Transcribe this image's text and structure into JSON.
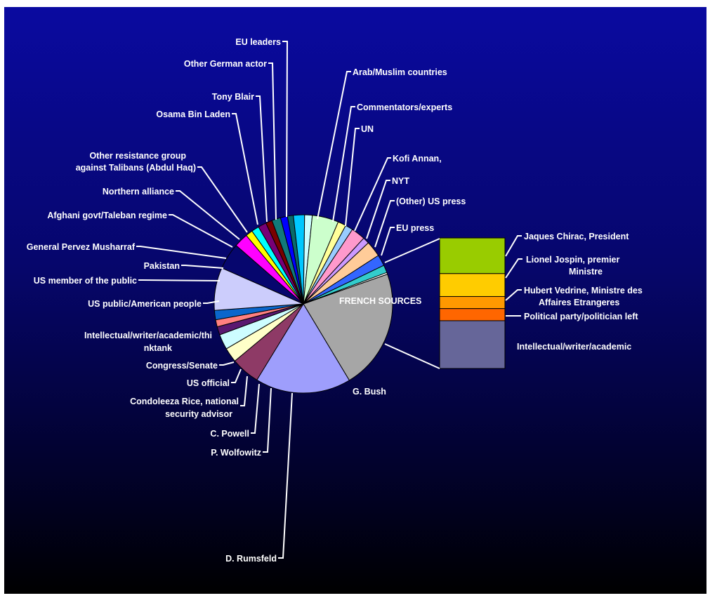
{
  "chart_data": {
    "type": "pie",
    "subtype": "bar-of-pie",
    "legend": "none (leader-line labels)",
    "slices": [
      {
        "label": "FRENCH SOURCES",
        "value": 20.5,
        "color": "#a6a6a6"
      },
      {
        "label": "G. Bush",
        "value": 16.3,
        "color": "#9e9efc"
      },
      {
        "label": "D. Rumsfeld",
        "value": 4.9,
        "color": "#8e3a66"
      },
      {
        "label": "P. Wolfowitz",
        "value": 2.5,
        "color": "#ffffc8"
      },
      {
        "label": "C. Powell",
        "value": 2.6,
        "color": "#cdfdff"
      },
      {
        "label": "Condoleeza Rice, national security advisor",
        "value": 1.4,
        "color": "#5a1870"
      },
      {
        "label": "US official",
        "value": 1.2,
        "color": "#ff8080"
      },
      {
        "label": "Congress/Senate",
        "value": 1.6,
        "color": "#0a66cc"
      },
      {
        "label": "Intellectual/writer/academic/thinktank",
        "value": 7.3,
        "color": "#cccdfc"
      },
      {
        "label": "US public/American people",
        "value": 4.5,
        "color": "#06066e"
      },
      {
        "label": "US member of the public",
        "value": 2.4,
        "color": "#ff00ff"
      },
      {
        "label": "Pakistan",
        "value": 1.2,
        "color": "#ffff00"
      },
      {
        "label": "General Pervez Musharraf",
        "value": 1.3,
        "color": "#00ffff"
      },
      {
        "label": "Afghani govt/Taleban regime",
        "value": 1.4,
        "color": "#770077"
      },
      {
        "label": "Northern alliance",
        "value": 1.1,
        "color": "#7a0000"
      },
      {
        "label": "Other resistance group against Talibans (Abdul Haq)",
        "value": 1.5,
        "color": "#117a7a"
      },
      {
        "label": "Osama Bin Laden",
        "value": 1.2,
        "color": "#0000ff"
      },
      {
        "label": "Tony Blair",
        "value": 1.0,
        "color": "#0a6a6a"
      },
      {
        "label": "Other German actor",
        "value": 1.9,
        "color": "#00c8ff"
      },
      {
        "label": "EU leaders",
        "value": 1.3,
        "color": "#ccffff"
      },
      {
        "label": "(unlabeled)",
        "value": 4.5,
        "color": "#ccffcc"
      },
      {
        "label": "Arab/Muslim countries",
        "value": 1.4,
        "color": "#ffff99"
      },
      {
        "label": "(unlabeled)",
        "value": 1.3,
        "color": "#99ccff"
      },
      {
        "label": "Commentators/experts",
        "value": 2.4,
        "color": "#ff99cc"
      },
      {
        "label": "UN",
        "value": 1.1,
        "color": "#cc99ff"
      },
      {
        "label": "Kofi Annan,",
        "value": 2.7,
        "color": "#ffcc99"
      },
      {
        "label": "NYT",
        "value": 1.9,
        "color": "#3366ff"
      },
      {
        "label": "(Other) US press",
        "value": 1.3,
        "color": "#33cccc"
      },
      {
        "label": "EU press",
        "value": 0.3,
        "color": "#ffffff"
      }
    ],
    "breakdown": {
      "of": "FRENCH SOURCES",
      "items": [
        {
          "label": "Jaques Chirac, President",
          "value": 5.6,
          "color": "#99cc00"
        },
        {
          "label": "Lionel Jospin, premier Ministre",
          "value": 3.6,
          "color": "#ffcc00"
        },
        {
          "label": "Hubert Vedrine, Ministre des Affaires Etrangeres",
          "value": 1.9,
          "color": "#ff9900"
        },
        {
          "label": "Political party/politician left",
          "value": 1.9,
          "color": "#ff6600"
        },
        {
          "label": "Intellectual/writer/academic",
          "value": 7.5,
          "color": "#666699"
        }
      ]
    }
  },
  "labels": {
    "french_sources": "FRENCH SOURCES",
    "g_bush": "G. Bush",
    "d_rumsfeld": "D. Rumsfeld",
    "p_wolfowitz": "P. Wolfowitz",
    "c_powell": "C. Powell",
    "condoleeza_1": "Condoleeza Rice, national",
    "condoleeza_2": "security advisor",
    "us_official": "US official",
    "congress": "Congress/Senate",
    "intellectual_1": "Intellectual/writer/academic/thi",
    "intellectual_2": "nktank",
    "us_public": "US public/American people",
    "us_member": "US member of the public",
    "pakistan": "Pakistan",
    "musharraf": "General Pervez Musharraf",
    "afghani": "Afghani govt/Taleban regime",
    "northern": "Northern alliance",
    "resistance_1": "Other resistance group",
    "resistance_2": "against Talibans (Abdul Haq)",
    "osama": "Osama Bin Laden",
    "tony_blair": "Tony Blair",
    "german": "Other German actor",
    "eu_leaders": "EU leaders",
    "arab": "Arab/Muslim countries",
    "commentators": "Commentators/experts",
    "un": "UN",
    "kofi": "Kofi Annan,",
    "nyt": "NYT",
    "us_press": "(Other) US press",
    "eu_press": "EU press",
    "chirac": "Jaques Chirac, President",
    "jospin_1": "Lionel Jospin, premier",
    "jospin_2": "Ministre",
    "vedrine_1": "Hubert Vedrine, Ministre des",
    "vedrine_2": "Affaires Etrangeres",
    "left": "Political party/politician left",
    "academic": "Intellectual/writer/academic"
  }
}
